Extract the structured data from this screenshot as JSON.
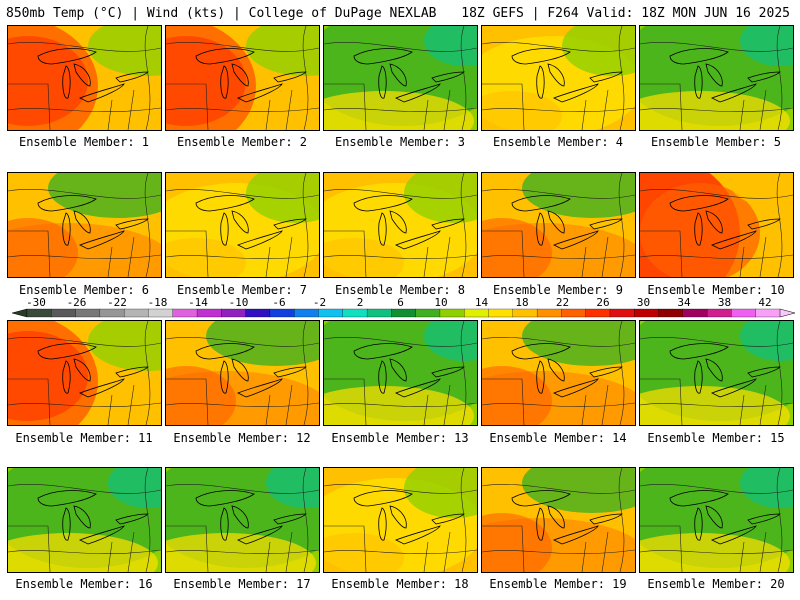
{
  "header": {
    "left": "850mb Temp (°C) | Wind (kts) | College of DuPage NEXLAB",
    "right": "18Z GEFS | F264 Valid: 18Z MON JUN 16 2025"
  },
  "member_label_prefix": "Ensemble Member:",
  "panels": [
    {
      "member": "1",
      "hot": "left"
    },
    {
      "member": "2",
      "hot": "left"
    },
    {
      "member": "3",
      "hot": "none-green"
    },
    {
      "member": "4",
      "hot": "none"
    },
    {
      "member": "5",
      "hot": "none-green"
    },
    {
      "member": "6",
      "hot": "lower"
    },
    {
      "member": "7",
      "hot": "none"
    },
    {
      "member": "8",
      "hot": "none"
    },
    {
      "member": "9",
      "hot": "lower"
    },
    {
      "member": "10",
      "hot": "left-strong"
    },
    {
      "member": "11",
      "hot": "left"
    },
    {
      "member": "12",
      "hot": "lower"
    },
    {
      "member": "13",
      "hot": "none-green"
    },
    {
      "member": "14",
      "hot": "lower"
    },
    {
      "member": "15",
      "hot": "none-green"
    },
    {
      "member": "16",
      "hot": "none-green"
    },
    {
      "member": "17",
      "hot": "none-green"
    },
    {
      "member": "18",
      "hot": "none"
    },
    {
      "member": "19",
      "hot": "lower"
    },
    {
      "member": "20",
      "hot": "none-green"
    }
  ],
  "colorbar": {
    "ticks": [
      "-30",
      "-26",
      "-22",
      "-18",
      "-14",
      "-10",
      "-6",
      "-2",
      "2",
      "6",
      "10",
      "14",
      "18",
      "22",
      "26",
      "30",
      "34",
      "38",
      "42"
    ],
    "colors": [
      "#3a4a3a",
      "#5a5a5a",
      "#787878",
      "#969696",
      "#b4b4b4",
      "#d2d2d2",
      "#e060e0",
      "#c030d0",
      "#9020c0",
      "#3010c0",
      "#1040e0",
      "#1080f0",
      "#10c0f0",
      "#10e0c0",
      "#10c080",
      "#109030",
      "#40b020",
      "#90d000",
      "#e0f000",
      "#ffe000",
      "#ffc000",
      "#ff9000",
      "#ff6000",
      "#ff3000",
      "#e01010",
      "#c00000",
      "#900000",
      "#a00060",
      "#d02090",
      "#f060f0",
      "#f8a0f8"
    ]
  }
}
